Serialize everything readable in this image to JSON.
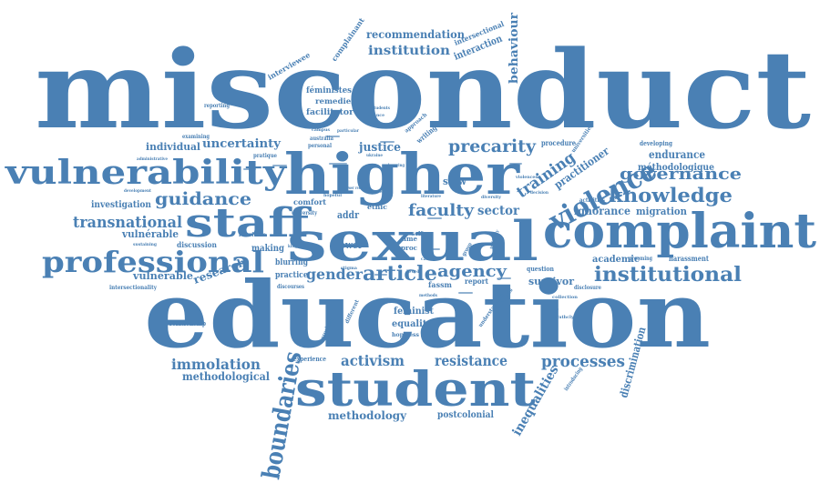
{
  "cloud": {
    "color": "#4a80b4",
    "words": [
      "misconduct",
      "education",
      "higher",
      "sexual",
      "complaint",
      "student",
      "staff",
      "vulnerability",
      "professional",
      "violence",
      "knowledge",
      "governance",
      "institutional",
      "boundaries",
      "guidance",
      "transnational",
      "article",
      "gender",
      "agency",
      "faculty",
      "precarity",
      "training",
      "resistance",
      "processes",
      "activism",
      "immolation",
      "justice",
      "institution",
      "recommendation",
      "behaviour",
      "uncertainty",
      "methodological",
      "methodology",
      "research",
      "vulnerable",
      "vulnérable",
      "investigation",
      "inequalities",
      "discrimination",
      "ignorance",
      "migration",
      "endurance",
      "méthodologique",
      "practitioner",
      "sector",
      "survivor",
      "individual",
      "postcolonial",
      "academic",
      "harassment",
      "interaction",
      "intersectional",
      "complainant",
      "interviewee",
      "féministes",
      "remedies",
      "facilitator",
      "equality",
      "feminist",
      "hopeless",
      "relationship",
      "intersectionality",
      "discussion",
      "making",
      "blurring",
      "practice",
      "power",
      "slow",
      "comfort",
      "addr",
      "ethic",
      "time",
      "proc",
      "fassm",
      "report",
      "question",
      "collection",
      "strathclyde",
      "disclosure",
      "developing",
      "procedure",
      "universities",
      "activities",
      "grooming",
      "decision",
      "writing",
      "approach",
      "australia",
      "personal",
      "reporting",
      "examining",
      "administrative",
      "pratique",
      "development",
      "sustaining",
      "l'écriture",
      "university",
      "experience",
      "introducing",
      "sexualised",
      "different",
      "policy",
      "understanding",
      "analysis",
      "hopeful",
      "particular",
      "group",
      "level",
      "discourses",
      "silence",
      "caring",
      "stigma",
      "literature",
      "diversity",
      "knowing",
      "women",
      "self",
      "power relations",
      "ukraine",
      "kingdom",
      "solidarity",
      "methods",
      "violences",
      "students",
      "campus"
    ]
  }
}
